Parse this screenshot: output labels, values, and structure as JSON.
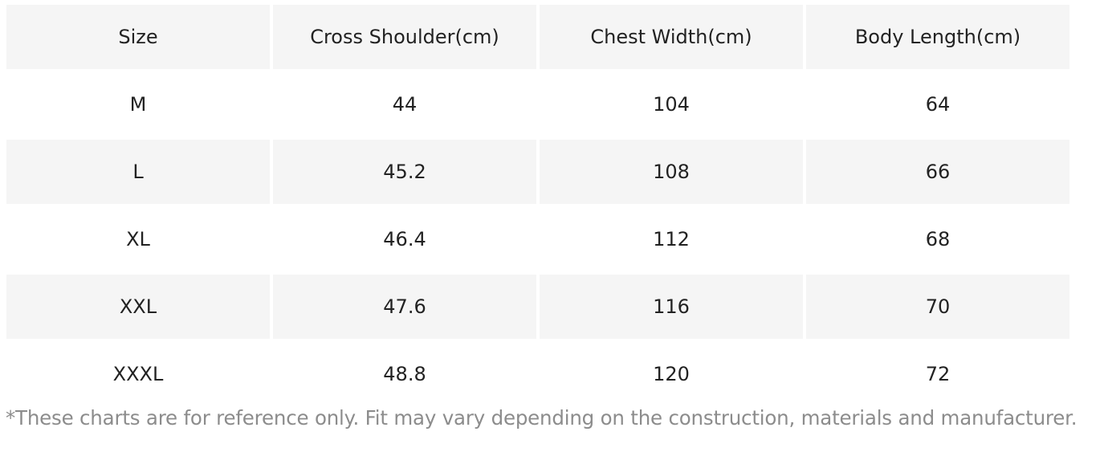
{
  "table": {
    "headers": [
      "Size",
      "Cross Shoulder(cm)",
      "Chest Width(cm)",
      "Body Length(cm)"
    ],
    "rows": [
      [
        "M",
        "44",
        "104",
        "64"
      ],
      [
        "L",
        "45.2",
        "108",
        "66"
      ],
      [
        "XL",
        "46.4",
        "112",
        "68"
      ],
      [
        "XXL",
        "47.6",
        "116",
        "70"
      ],
      [
        "XXXL",
        "48.8",
        "120",
        "72"
      ]
    ]
  },
  "colors": {
    "shaded_row": "#f5f5f5",
    "text": "#222222",
    "footnote_text": "#8c8c8c"
  },
  "footnote": "*These charts are for reference only. Fit may vary depending on the construction, materials and manufacturer."
}
